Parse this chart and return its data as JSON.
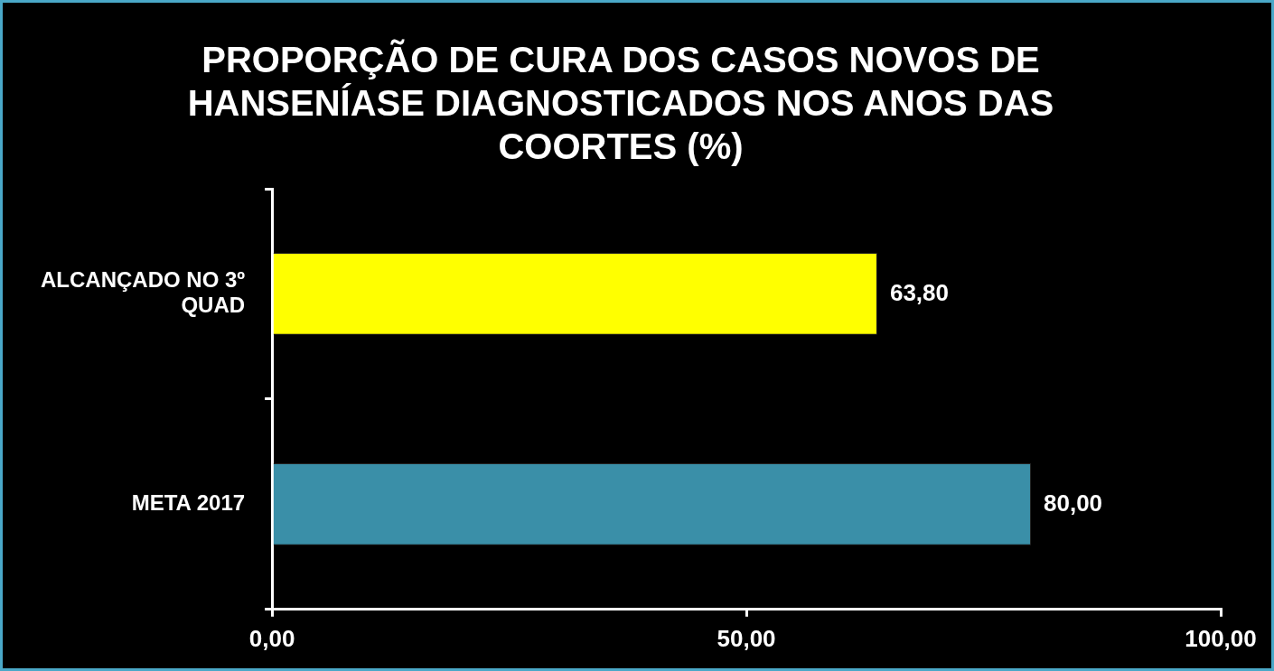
{
  "chart_data": {
    "type": "bar",
    "orientation": "horizontal",
    "title": "PROPORÇÃO DE CURA DOS CASOS NOVOS DE HANSENÍASE DIAGNOSTICADOS NOS ANOS DAS COORTES (%)",
    "categories": [
      "ALCANÇADO NO 3º QUAD",
      "META 2017"
    ],
    "values": [
      63.8,
      80.0
    ],
    "colors": [
      "#ffff00",
      "#3a8fa8"
    ],
    "value_labels": [
      "63,80",
      "80,00"
    ],
    "xlim": [
      0,
      100
    ],
    "xticks": [
      {
        "value": 0,
        "label": "0,00"
      },
      {
        "value": 50,
        "label": "50,00"
      },
      {
        "value": 100,
        "label": "100,00"
      }
    ],
    "grid": false,
    "legend": false
  }
}
